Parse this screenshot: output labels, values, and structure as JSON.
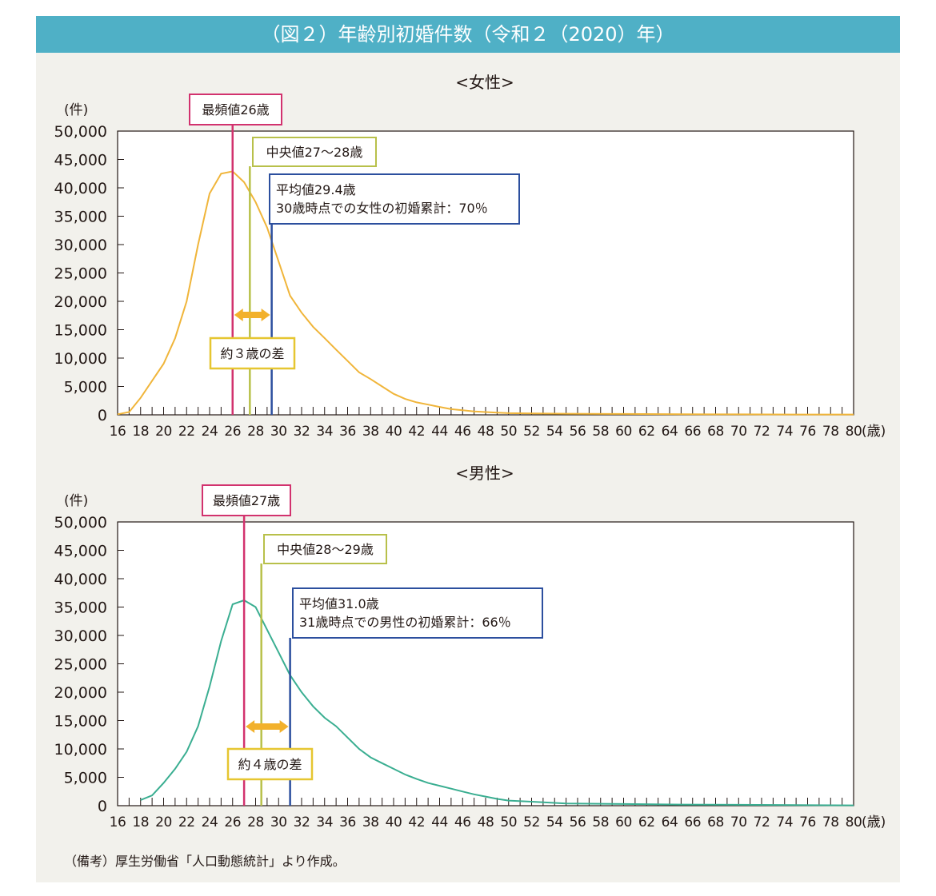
{
  "title": "（図２）年齢別初婚件数（令和２（2020）年）",
  "source_note": "（備考）厚生労働省「人口動態統計」より作成。",
  "colors": {
    "header": "#4fb0c6",
    "panel": "#f2f1ec",
    "female_line": "#f0b53a",
    "male_line": "#3aae91",
    "mode": "#d2326e",
    "median": "#b8c04a",
    "mean": "#2c4f9e",
    "diff_box": "#e6c631",
    "diff_arrow": "#f2b12c"
  },
  "chart_data": [
    {
      "type": "line",
      "title": "<女性>",
      "ylabel": "(件)",
      "xlabel": "(歳)",
      "xlim": [
        16,
        80
      ],
      "ylim": [
        0,
        50000
      ],
      "x_ticks": [
        16,
        18,
        20,
        22,
        24,
        26,
        28,
        30,
        32,
        34,
        36,
        38,
        40,
        42,
        44,
        46,
        48,
        50,
        52,
        54,
        56,
        58,
        60,
        62,
        64,
        66,
        68,
        70,
        72,
        74,
        76,
        78,
        80
      ],
      "y_ticks": [
        "50,000",
        "45,000",
        "40,000",
        "35,000",
        "30,000",
        "25,000",
        "20,000",
        "15,000",
        "10,000",
        "5,000",
        "0"
      ],
      "series": [
        {
          "x": [
            16,
            17,
            18,
            19,
            20,
            21,
            22,
            23,
            24,
            25,
            26,
            27,
            28,
            29,
            30,
            31,
            32,
            33,
            34,
            35,
            36,
            37,
            38,
            39,
            40,
            41,
            42,
            43,
            44,
            45,
            46,
            47,
            48,
            49,
            50,
            52,
            55,
            60,
            65,
            70,
            75,
            80
          ],
          "values": [
            100,
            500,
            3000,
            6000,
            9000,
            13500,
            20000,
            30000,
            39000,
            42500,
            42900,
            41000,
            37500,
            33000,
            27000,
            21000,
            18000,
            15500,
            13500,
            11500,
            9500,
            7500,
            6300,
            5000,
            3700,
            2800,
            2200,
            1800,
            1400,
            1000,
            800,
            600,
            500,
            400,
            300,
            250,
            200,
            150,
            100,
            80,
            60,
            50
          ]
        }
      ],
      "annotations": {
        "mode": {
          "label": "最頻値26歳",
          "x": 26
        },
        "median": {
          "label": "中央値27～28歳",
          "x": 27.5
        },
        "mean": {
          "label1": "平均値29.4歳",
          "label2": "30歳時点での女性の初婚累計：70％",
          "x": 29.4
        },
        "difference": {
          "label": "約３歳の差"
        }
      }
    },
    {
      "type": "line",
      "title": "<男性>",
      "ylabel": "(件)",
      "xlabel": "(歳)",
      "xlim": [
        16,
        80
      ],
      "ylim": [
        0,
        50000
      ],
      "x_ticks": [
        16,
        18,
        20,
        22,
        24,
        26,
        28,
        30,
        32,
        34,
        36,
        38,
        40,
        42,
        44,
        46,
        48,
        50,
        52,
        54,
        56,
        58,
        60,
        62,
        64,
        66,
        68,
        70,
        72,
        74,
        76,
        78,
        80
      ],
      "y_ticks": [
        "50,000",
        "45,000",
        "40,000",
        "35,000",
        "30,000",
        "25,000",
        "20,000",
        "15,000",
        "10,000",
        "5,000",
        "0"
      ],
      "series": [
        {
          "x": [
            18,
            19,
            20,
            21,
            22,
            23,
            24,
            25,
            26,
            27,
            28,
            29,
            30,
            31,
            32,
            33,
            34,
            35,
            36,
            37,
            38,
            39,
            40,
            41,
            42,
            43,
            44,
            45,
            46,
            47,
            48,
            49,
            50,
            52,
            55,
            60,
            65,
            70,
            75,
            80
          ],
          "values": [
            1000,
            1800,
            4000,
            6500,
            9500,
            14000,
            21000,
            29000,
            35500,
            36200,
            35000,
            31000,
            27000,
            23000,
            20000,
            17500,
            15500,
            14000,
            12000,
            10000,
            8500,
            7500,
            6500,
            5500,
            4700,
            4000,
            3500,
            3000,
            2500,
            2000,
            1600,
            1200,
            900,
            700,
            400,
            300,
            200,
            150,
            100,
            60
          ]
        }
      ],
      "annotations": {
        "mode": {
          "label": "最頻値27歳",
          "x": 27
        },
        "median": {
          "label": "中央値28～29歳",
          "x": 28.5
        },
        "mean": {
          "label1": "平均値31.0歳",
          "label2": "31歳時点での男性の初婚累計：66％",
          "x": 31.0
        },
        "difference": {
          "label": "約４歳の差"
        }
      }
    }
  ]
}
